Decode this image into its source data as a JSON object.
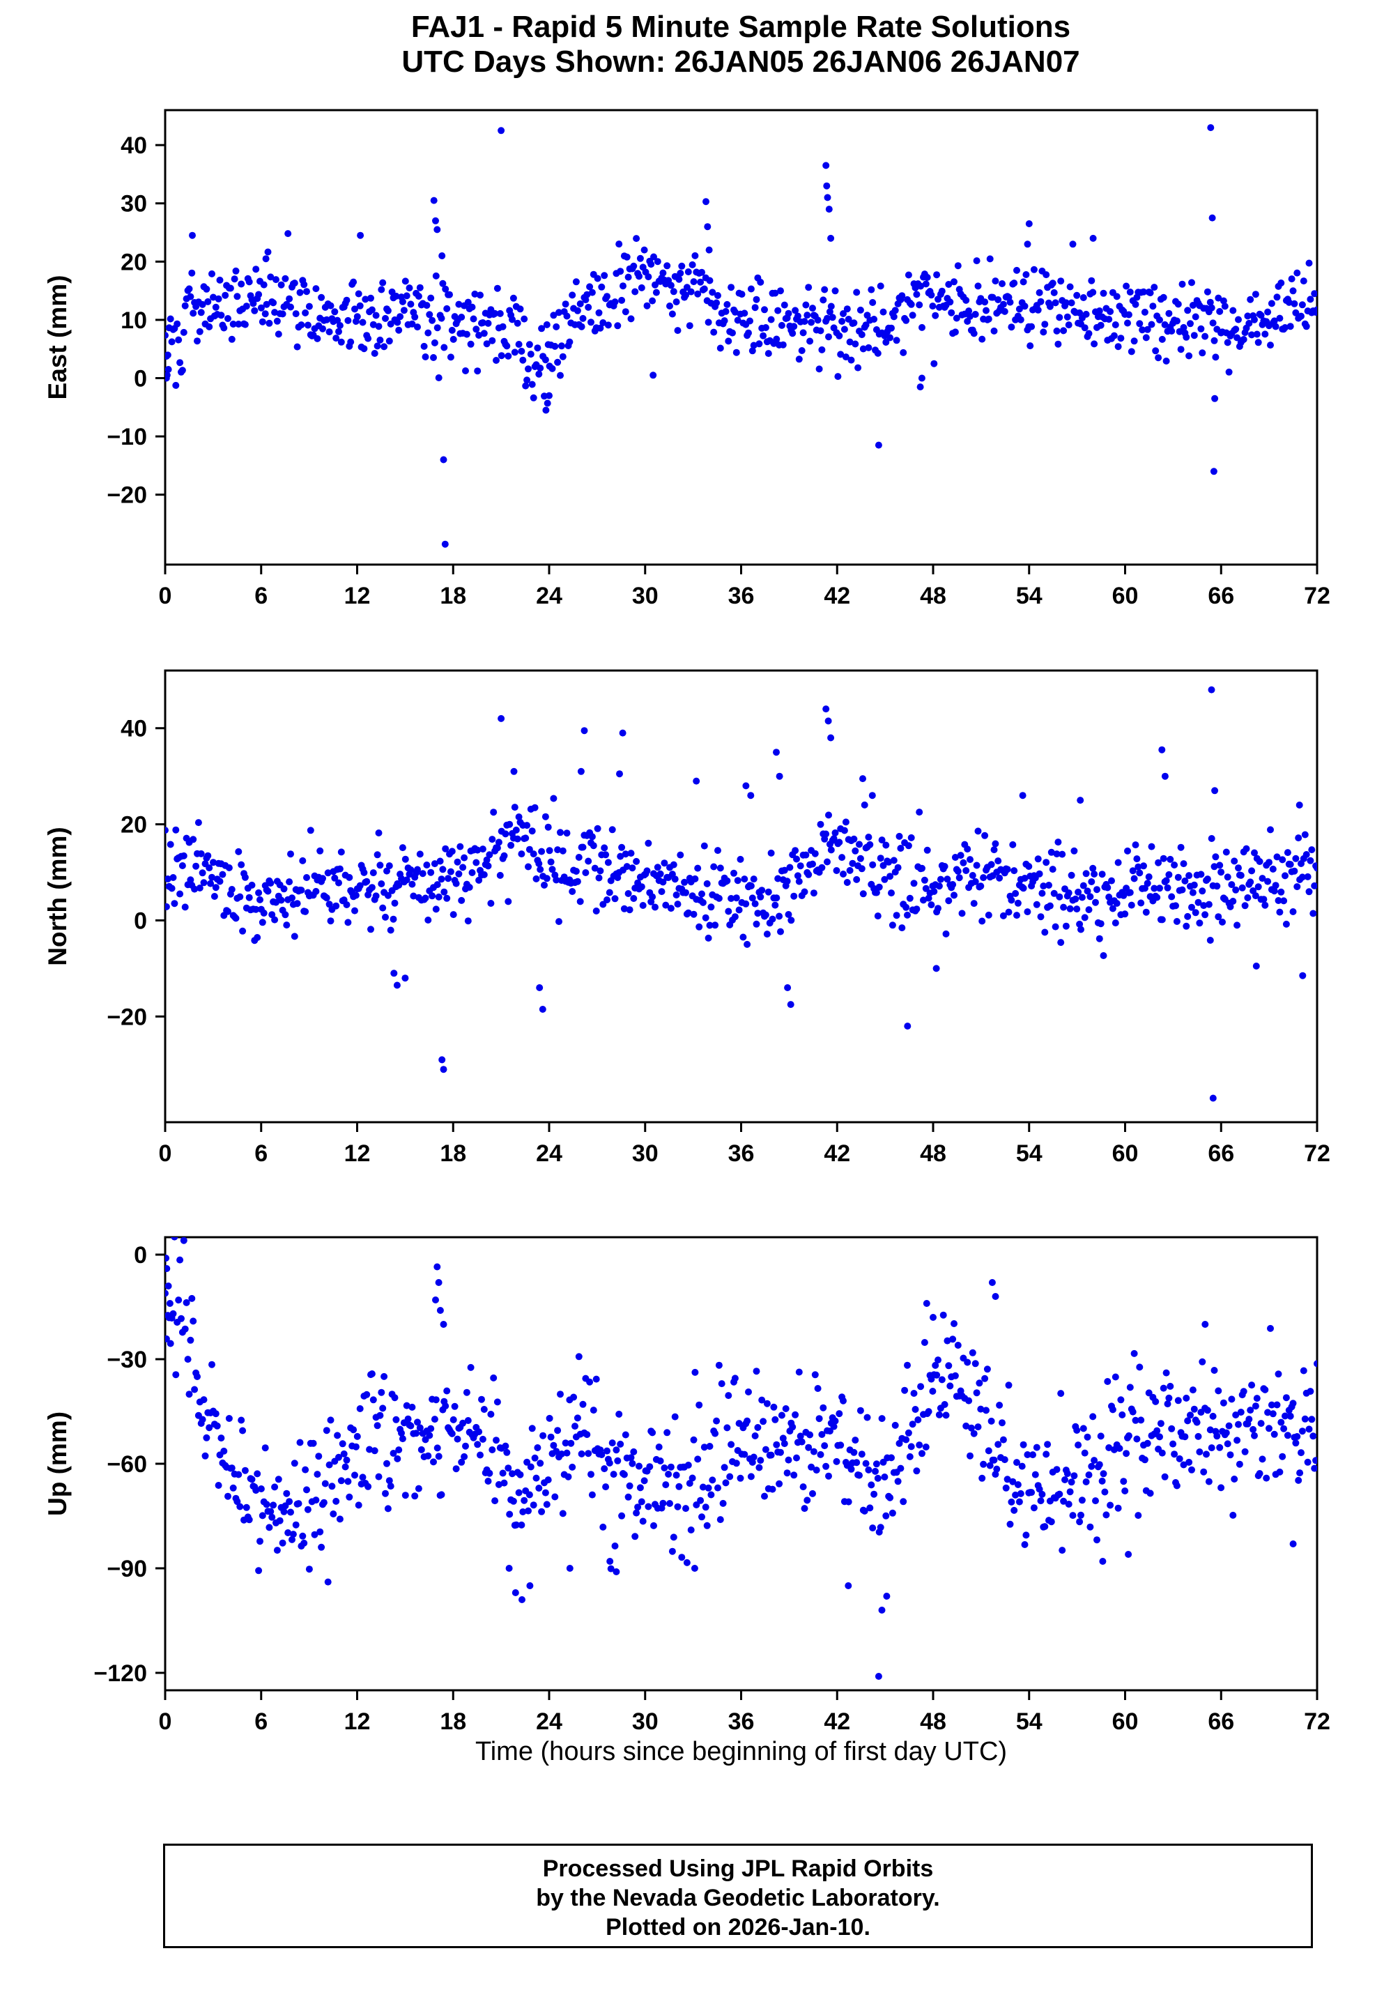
{
  "title": {
    "line1": "FAJ1 - Rapid 5 Minute Sample Rate Solutions",
    "line2": "UTC Days Shown:  26JAN05 26JAN06 26JAN07"
  },
  "xaxis_title": "Time (hours since beginning of first day UTC)",
  "footer": {
    "line1": "Processed Using JPL Rapid Orbits",
    "line2": "by the Nevada Geodetic Laboratory.",
    "line3": "Plotted on 2026-Jan-10."
  },
  "style": {
    "point_color": "#0000EE",
    "point_radius": 5,
    "frame_color": "#000000"
  },
  "chart_data": [
    {
      "type": "scatter",
      "name": "east",
      "ylabel": "East (mm)",
      "xlim": [
        0,
        72
      ],
      "xticks": [
        0,
        6,
        12,
        18,
        24,
        30,
        36,
        42,
        48,
        54,
        60,
        66,
        72
      ],
      "ylim": [
        -32,
        46
      ],
      "yticks": [
        -20,
        -10,
        0,
        10,
        20,
        30,
        40
      ],
      "n_points": 864,
      "seed": 101,
      "mean": 11.5,
      "std": 3.4,
      "sines": [
        [
          24,
          1.8,
          0.3
        ],
        [
          8,
          1.0,
          2.0
        ]
      ],
      "bumps": [
        [
          23.3,
          1.5,
          -10
        ],
        [
          0.4,
          0.8,
          -8
        ],
        [
          29.5,
          2.5,
          4
        ],
        [
          33.8,
          1.0,
          4
        ]
      ],
      "outliers": [
        [
          0.08,
          0
        ],
        [
          0.12,
          0.5
        ],
        [
          0.2,
          1.5
        ],
        [
          1.7,
          24.5
        ],
        [
          6.3,
          20.5
        ],
        [
          12.2,
          24.5
        ],
        [
          16.8,
          30.5
        ],
        [
          16.9,
          27
        ],
        [
          17.0,
          25.5
        ],
        [
          17.3,
          21
        ],
        [
          17.4,
          -14
        ],
        [
          17.5,
          -28.5
        ],
        [
          21.0,
          42.5
        ],
        [
          23.8,
          -5.5
        ],
        [
          23.9,
          -4.3
        ],
        [
          24.0,
          -3
        ],
        [
          30.5,
          0.5
        ],
        [
          33.8,
          30.3
        ],
        [
          33.9,
          26
        ],
        [
          34.0,
          22
        ],
        [
          41.3,
          36.5
        ],
        [
          41.35,
          33
        ],
        [
          41.4,
          31
        ],
        [
          41.5,
          29
        ],
        [
          41.6,
          24
        ],
        [
          44.6,
          -11.5
        ],
        [
          47.2,
          -1.5
        ],
        [
          47.3,
          0
        ],
        [
          53.9,
          23
        ],
        [
          54.0,
          26.5
        ],
        [
          58.0,
          24
        ],
        [
          65.35,
          43
        ],
        [
          65.45,
          27.5
        ],
        [
          65.55,
          -16
        ],
        [
          65.6,
          -3.5
        ]
      ]
    },
    {
      "type": "scatter",
      "name": "north",
      "ylabel": "North (mm)",
      "xlim": [
        0,
        72
      ],
      "xticks": [
        0,
        6,
        12,
        18,
        24,
        30,
        36,
        42,
        48,
        54,
        60,
        66,
        72
      ],
      "ylim": [
        -42,
        52
      ],
      "yticks": [
        -20,
        0,
        20,
        40
      ],
      "n_points": 864,
      "seed": 202,
      "mean": 7.5,
      "std": 4.3,
      "sines": [
        [
          24,
          2.0,
          2.0
        ],
        [
          10,
          1.5,
          0.7
        ]
      ],
      "bumps": [
        [
          21.5,
          2.5,
          6
        ],
        [
          26.5,
          2.0,
          5
        ],
        [
          41.8,
          2.0,
          7
        ]
      ],
      "outliers": [
        [
          14.3,
          -11
        ],
        [
          14.5,
          -13.5
        ],
        [
          15.0,
          -12
        ],
        [
          17.3,
          -29
        ],
        [
          17.4,
          -31
        ],
        [
          21.0,
          42
        ],
        [
          21.8,
          31
        ],
        [
          23.4,
          -14
        ],
        [
          23.6,
          -18.5
        ],
        [
          26.0,
          31
        ],
        [
          26.2,
          39.5
        ],
        [
          28.4,
          30.5
        ],
        [
          28.6,
          39
        ],
        [
          33.2,
          29
        ],
        [
          36.3,
          28
        ],
        [
          36.6,
          26
        ],
        [
          38.2,
          35
        ],
        [
          38.4,
          30
        ],
        [
          38.9,
          -14
        ],
        [
          39.1,
          -17.5
        ],
        [
          41.3,
          44
        ],
        [
          41.45,
          41.5
        ],
        [
          41.6,
          38
        ],
        [
          43.6,
          29.5
        ],
        [
          44.2,
          26
        ],
        [
          46.4,
          -22
        ],
        [
          48.2,
          -10
        ],
        [
          53.6,
          26
        ],
        [
          57.2,
          25
        ],
        [
          62.3,
          35.5
        ],
        [
          62.5,
          30
        ],
        [
          65.4,
          48
        ],
        [
          65.5,
          -37
        ],
        [
          65.6,
          27
        ],
        [
          68.2,
          -9.5
        ],
        [
          70.9,
          24
        ],
        [
          71.1,
          -11.5
        ]
      ]
    },
    {
      "type": "scatter",
      "name": "up",
      "ylabel": "Up (mm)",
      "xlim": [
        0,
        72
      ],
      "xticks": [
        0,
        6,
        12,
        18,
        24,
        30,
        36,
        42,
        48,
        54,
        60,
        66,
        72
      ],
      "ylim": [
        -125,
        5
      ],
      "yticks": [
        -120,
        -90,
        -60,
        -30,
        0
      ],
      "n_points": 864,
      "seed": 303,
      "mean": -55,
      "std": 9,
      "sines": [
        [
          24,
          8,
          2.6
        ],
        [
          12,
          5,
          1.2
        ]
      ],
      "bumps": [
        [
          0.5,
          1.5,
          38
        ],
        [
          8,
          3,
          -6
        ],
        [
          22.5,
          2,
          -18
        ],
        [
          44.5,
          2.5,
          -14
        ],
        [
          49,
          2,
          14
        ]
      ],
      "outliers": [
        [
          0.05,
          -1
        ],
        [
          0.1,
          -4
        ],
        [
          0.2,
          -9
        ],
        [
          0.3,
          -14
        ],
        [
          16.9,
          -13
        ],
        [
          17.0,
          -3.5
        ],
        [
          17.1,
          -8
        ],
        [
          17.2,
          -16
        ],
        [
          17.4,
          -20
        ],
        [
          21.5,
          -90
        ],
        [
          21.9,
          -97
        ],
        [
          22.3,
          -99
        ],
        [
          22.8,
          -95
        ],
        [
          25.3,
          -90
        ],
        [
          27.8,
          -88
        ],
        [
          28.2,
          -91
        ],
        [
          33.1,
          -90
        ],
        [
          42.7,
          -95
        ],
        [
          44.6,
          -121
        ],
        [
          44.8,
          -102
        ],
        [
          45.1,
          -98
        ],
        [
          47.6,
          -14
        ],
        [
          48.0,
          -18
        ],
        [
          51.7,
          -8
        ],
        [
          51.9,
          -12
        ],
        [
          58.6,
          -88
        ],
        [
          60.2,
          -86
        ],
        [
          65.0,
          -20
        ],
        [
          70.5,
          -83
        ]
      ]
    }
  ]
}
